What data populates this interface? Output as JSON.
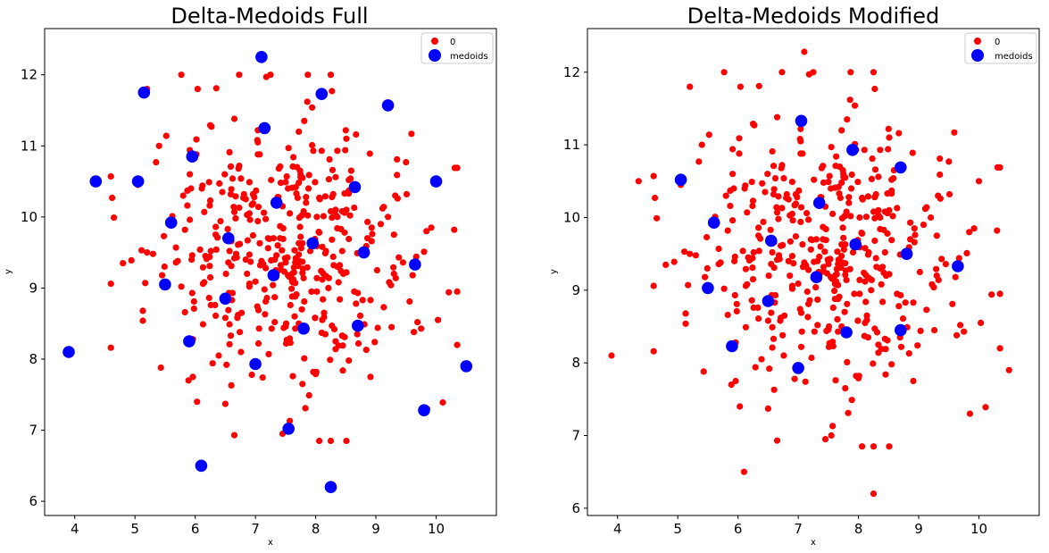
{
  "colors": {
    "points": "#ff0000",
    "medoids": "#0000ff"
  },
  "chart_data": [
    {
      "type": "scatter",
      "title": "Delta-Medoids Full",
      "xlabel": "x",
      "ylabel": "y",
      "xlim": [
        3.5,
        11.0
      ],
      "ylim": [
        5.8,
        12.65
      ],
      "xticks": [
        4,
        5,
        6,
        7,
        8,
        9,
        10
      ],
      "yticks": [
        6,
        7,
        8,
        9,
        10,
        11,
        12
      ],
      "legend": {
        "position": "top-right",
        "entries": [
          "0",
          "medoids"
        ]
      },
      "series": [
        {
          "name": "0",
          "color": "#ff0000",
          "x": [],
          "y": []
        },
        {
          "name": "medoids",
          "color": "#0000ff",
          "x": [
            3.9,
            4.35,
            5.05,
            5.15,
            5.5,
            5.6,
            5.9,
            5.95,
            6.1,
            6.5,
            6.55,
            7.0,
            7.1,
            7.15,
            7.3,
            7.35,
            7.55,
            7.8,
            7.95,
            8.1,
            8.25,
            8.65,
            8.7,
            8.8,
            9.2,
            9.65,
            9.8,
            10.0,
            10.5
          ],
          "y": [
            8.1,
            10.5,
            10.5,
            11.75,
            9.05,
            9.92,
            8.25,
            10.85,
            6.5,
            8.85,
            9.7,
            7.93,
            12.25,
            11.25,
            9.18,
            10.2,
            7.02,
            8.43,
            9.63,
            11.73,
            6.2,
            10.42,
            8.47,
            9.5,
            11.57,
            9.33,
            7.28,
            10.5,
            7.9
          ]
        }
      ]
    },
    {
      "type": "scatter",
      "title": "Delta-Medoids Modified",
      "xlabel": "x",
      "ylabel": "y",
      "xlim": [
        3.5,
        11.0
      ],
      "ylim": [
        5.9,
        12.6
      ],
      "xticks": [
        4,
        5,
        6,
        7,
        8,
        9,
        10
      ],
      "yticks": [
        6,
        7,
        8,
        9,
        10,
        11,
        12
      ],
      "legend": {
        "position": "top-right",
        "entries": [
          "0",
          "medoids"
        ]
      },
      "series": [
        {
          "name": "0",
          "color": "#ff0000",
          "x": [],
          "y": []
        },
        {
          "name": "medoids",
          "color": "#0000ff",
          "x": [
            5.05,
            5.5,
            5.6,
            5.9,
            6.5,
            6.55,
            7.0,
            7.05,
            7.3,
            7.35,
            7.8,
            7.9,
            7.95,
            8.7,
            8.7,
            8.8,
            9.65
          ],
          "y": [
            10.52,
            9.03,
            9.93,
            8.23,
            8.85,
            9.68,
            7.93,
            11.33,
            9.18,
            10.2,
            8.42,
            10.93,
            9.63,
            10.69,
            8.45,
            9.5,
            9.33
          ]
        }
      ]
    }
  ]
}
